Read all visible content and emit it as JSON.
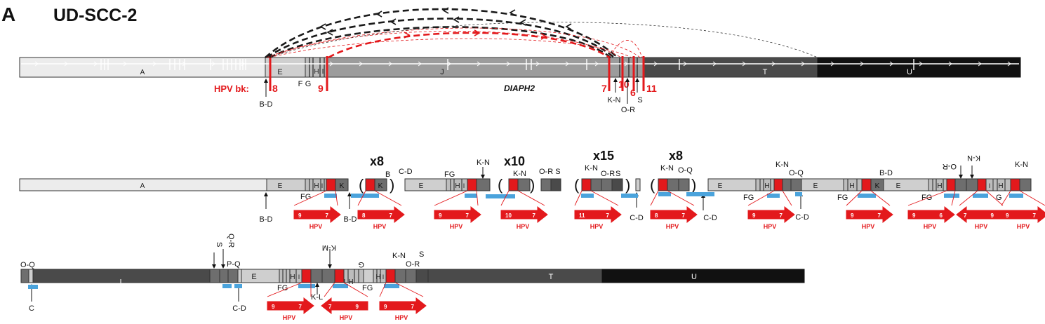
{
  "panel_letter": "A",
  "sample_id": "UD-SCC-2",
  "gene_label": "DIAPH2",
  "hpv_bk_label": "HPV bk:",
  "hpv_label": "HPV",
  "colors": {
    "red": "#e3191c",
    "blue": "#4aa3dc",
    "segment_A": "#ececec",
    "segment_E": "#cfcfcf",
    "segment_J": "#9c9c9c",
    "segment_T": "#4a4a4a",
    "segment_U": "#111111",
    "segment_dark": "#6e6e6e",
    "arc_black": "#1a1a1a"
  },
  "reference": {
    "segments": [
      {
        "label": "A"
      },
      {
        "label": "E"
      },
      {
        "label": "F"
      },
      {
        "label": "G"
      },
      {
        "label": "H"
      },
      {
        "label": "I"
      },
      {
        "label": "J"
      },
      {
        "label": "T"
      },
      {
        "label": "U"
      }
    ],
    "breakpoints": [
      "8",
      "9",
      "7",
      "10",
      "6",
      "11"
    ],
    "arrow_labels": [
      "B-D",
      "K-N",
      "O-R",
      "S"
    ]
  },
  "row2": {
    "multipliers": [
      "x8",
      "x10",
      "x15",
      "x8"
    ],
    "labels": {
      "A": "A",
      "E": "E",
      "F": "F",
      "G": "G",
      "H": "H",
      "I": "I",
      "K": "K",
      "B": "B",
      "CD": "C-D",
      "BD": "B-D",
      "KN": "K-N",
      "ORS": "O-R S",
      "OR": "O-R",
      "S": "S",
      "OQ": "O-Q",
      "FG": "FG"
    },
    "hpv_arrows": [
      {
        "left": "9",
        "right": "7"
      },
      {
        "left": "8",
        "right": "7"
      },
      {
        "left": "9",
        "right": "7"
      },
      {
        "left": "10",
        "right": "7"
      },
      {
        "left": "11",
        "right": "7"
      },
      {
        "left": "8",
        "right": "7"
      },
      {
        "left": "9",
        "right": "7"
      },
      {
        "left": "9",
        "right": "7"
      },
      {
        "left": "9",
        "right": "6"
      },
      {
        "left": "7",
        "right": "9"
      },
      {
        "left": "9",
        "right": "7"
      }
    ]
  },
  "row3": {
    "labels": {
      "OQ": "O-Q",
      "T_rev": "T",
      "S": "S",
      "QR": "Q-R",
      "PQ": "P-Q",
      "E": "E",
      "FG": "FG",
      "H": "H",
      "I": "I",
      "KM": "K-M",
      "KL": "K-L",
      "G": "G",
      "KN": "K-N",
      "OR": "O-R",
      "T": "T",
      "U": "U",
      "C": "C",
      "CD": "C-D"
    },
    "hpv_arrows": [
      {
        "left": "9",
        "right": "7"
      },
      {
        "left": "7",
        "right": "9"
      },
      {
        "left": "9",
        "right": "7"
      }
    ]
  }
}
